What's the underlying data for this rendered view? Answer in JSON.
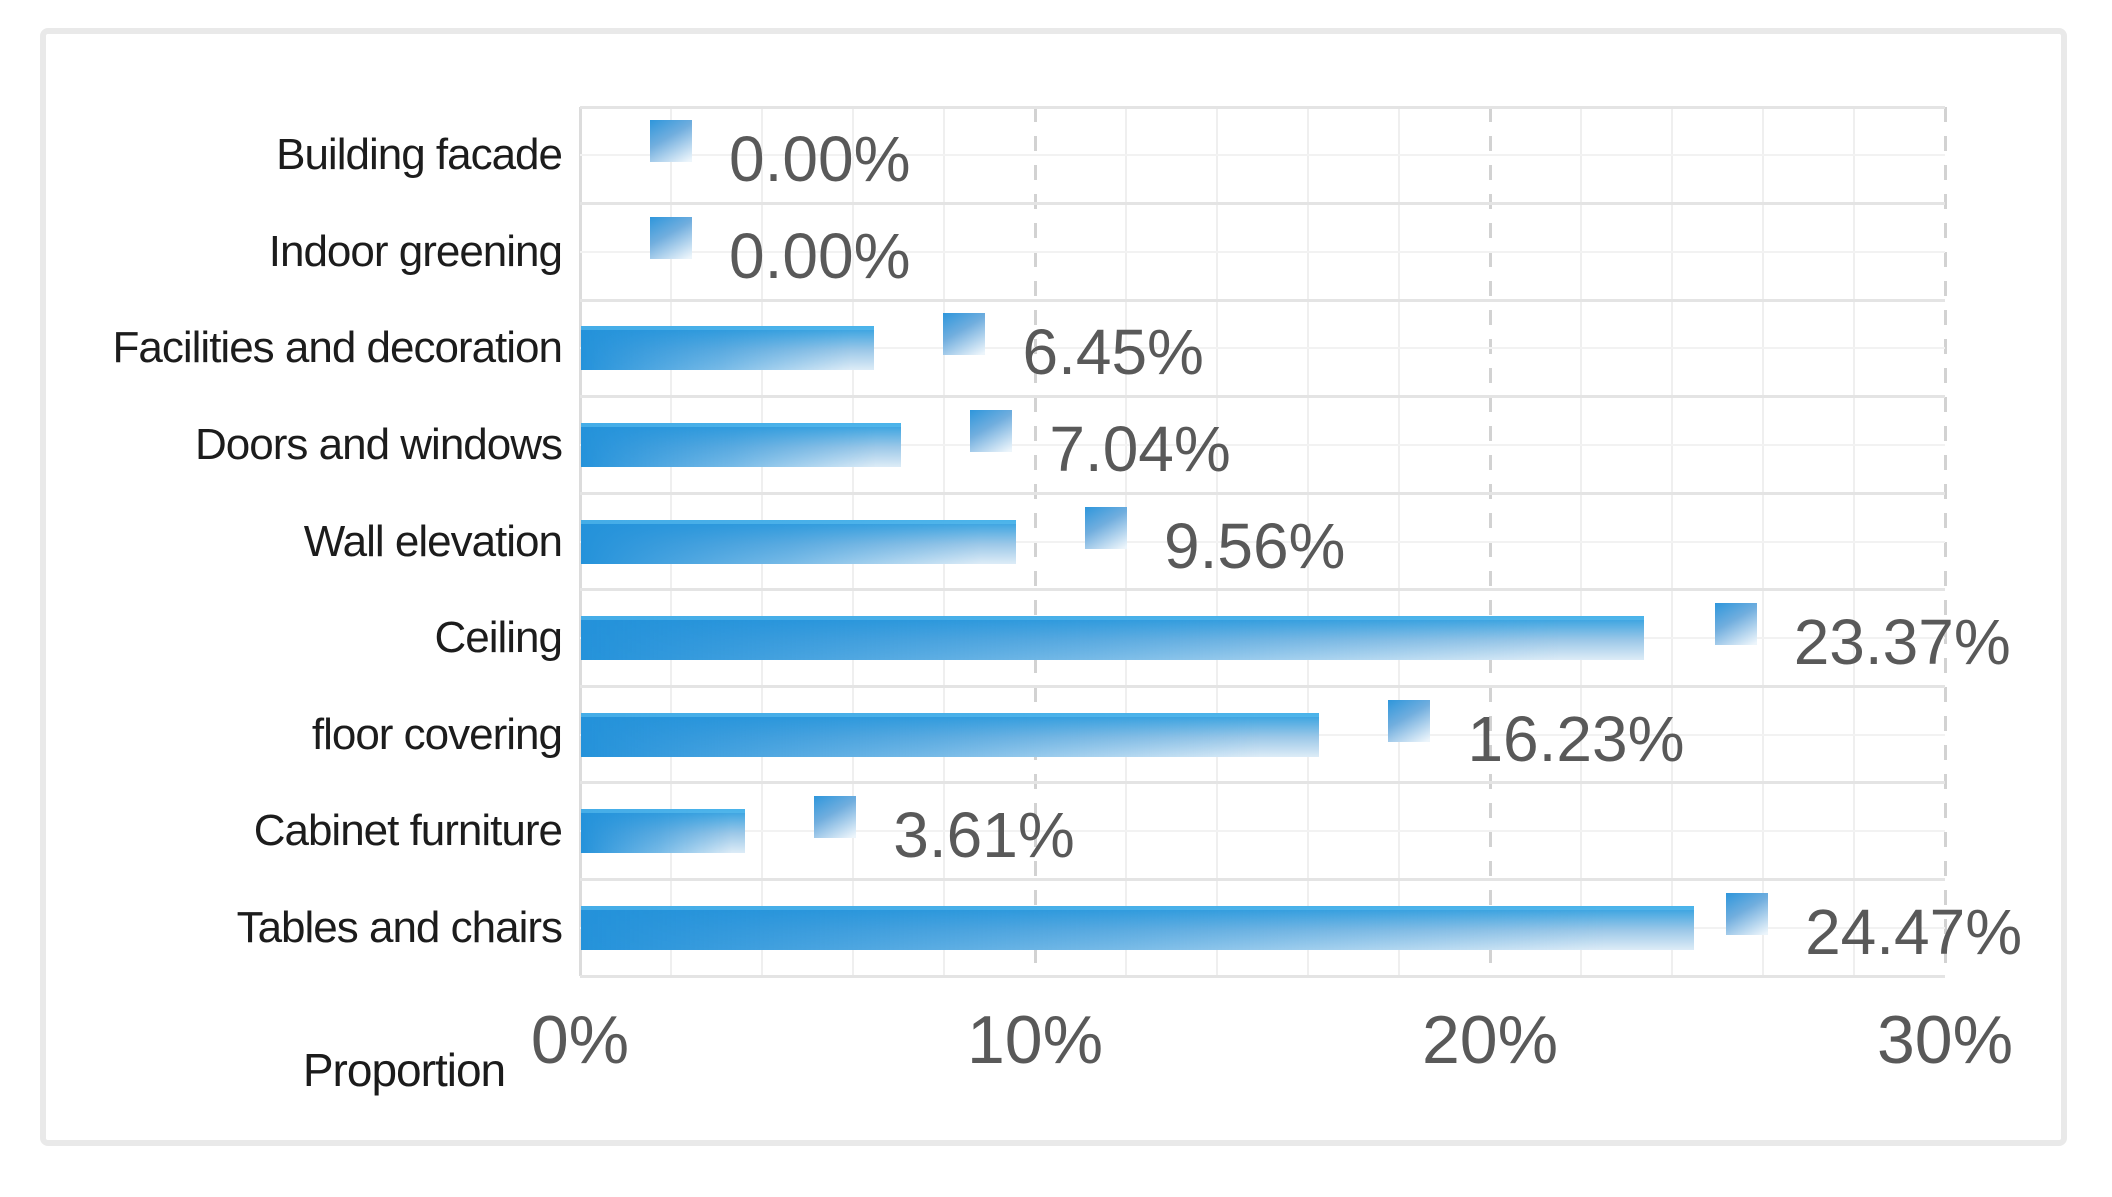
{
  "chart_data": {
    "type": "bar",
    "orientation": "horizontal",
    "title": "",
    "categories": [
      "Building facade",
      "Indoor greening",
      "Facilities and decoration",
      "Doors and windows",
      "Wall elevation",
      "Ceiling",
      "floor covering",
      "Cabinet furniture",
      "Tables and chairs"
    ],
    "values": [
      0.0,
      0.0,
      6.45,
      7.04,
      9.56,
      23.37,
      16.23,
      3.61,
      24.47
    ],
    "data_labels": [
      "0.00%",
      "0.00%",
      "6.45%",
      "7.04%",
      "9.56%",
      "23.37%",
      "16.23%",
      "3.61%",
      "24.47%"
    ],
    "marker_positions_pct": [
      2.0,
      2.0,
      8.45,
      9.04,
      11.56,
      25.4,
      18.23,
      5.61,
      25.65
    ],
    "x_axis": {
      "label": "Proportion",
      "ticks": [
        {
          "label": "0%",
          "value": 0
        },
        {
          "label": "10%",
          "value": 10
        },
        {
          "label": "20%",
          "value": 20
        },
        {
          "label": "30%",
          "value": 30
        }
      ],
      "min": 0,
      "max": 30,
      "minor_step": 2,
      "major_step": 10
    },
    "grid": true,
    "legend": false,
    "colors": {
      "bar_blue": "#2492da",
      "bar_blue_top": "#2e9fe0",
      "bar_fade": "#ddecf7",
      "marker_blue": "#2e96dc",
      "marker_fade": "#ecf5fb",
      "value_label": "#595959",
      "tick_label": "#595959",
      "category_label": "#1c1c1c",
      "axis_title": "#1b1b1b",
      "grid_minor": "#efefef",
      "grid_row_boundary": "#e4e4e4",
      "grid_row_center": "#f2f2f2",
      "grid_major_dashed": "#d2d2d2",
      "grid_zero": "#dcdcdc",
      "card_border": "#e9e9e9",
      "background": "#ffffff"
    }
  }
}
